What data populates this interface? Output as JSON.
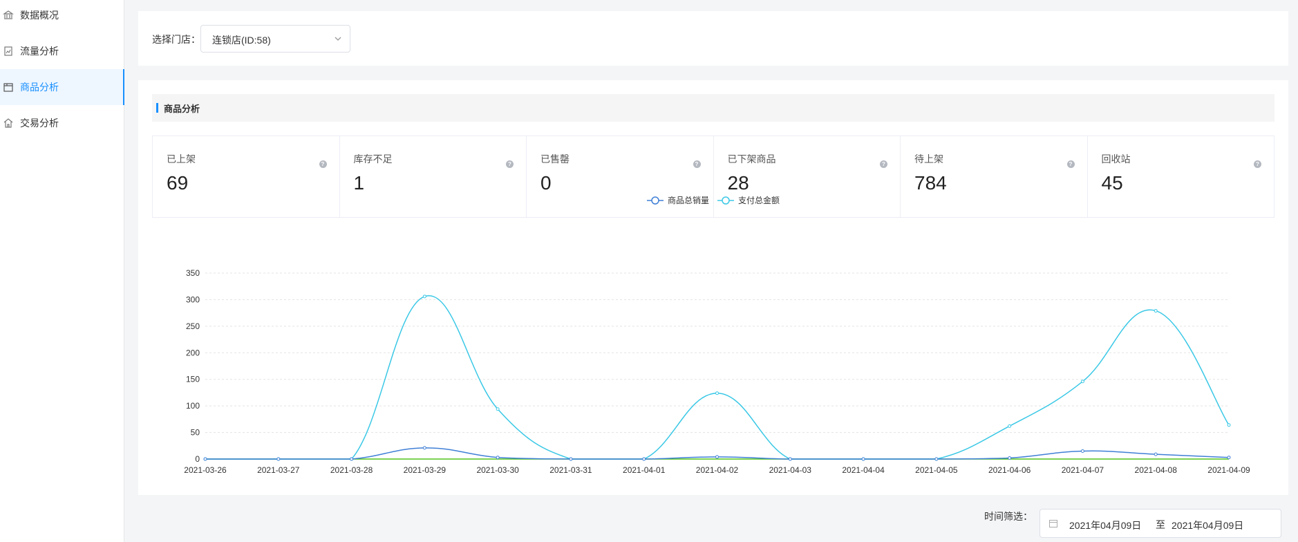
{
  "sidebar": {
    "items": [
      {
        "label": "数据概况",
        "icon": "bank-icon"
      },
      {
        "label": "流量分析",
        "icon": "chart-doc-icon"
      },
      {
        "label": "商品分析",
        "icon": "box-icon"
      },
      {
        "label": "交易分析",
        "icon": "building-icon"
      }
    ],
    "active_index": 2
  },
  "store": {
    "label": "选择门店：",
    "selected": "连锁店(ID:58)"
  },
  "section": {
    "title": "商品分析"
  },
  "stats": [
    {
      "label": "已上架",
      "value": "69"
    },
    {
      "label": "库存不足",
      "value": "1"
    },
    {
      "label": "已售罄",
      "value": "0"
    },
    {
      "label": "已下架商品",
      "value": "28"
    },
    {
      "label": "待上架",
      "value": "784"
    },
    {
      "label": "回收站",
      "value": "45"
    }
  ],
  "chart_data": {
    "type": "line",
    "categories": [
      "2021-03-26",
      "2021-03-27",
      "2021-03-28",
      "2021-03-29",
      "2021-03-30",
      "2021-03-31",
      "2021-04-01",
      "2021-04-02",
      "2021-04-03",
      "2021-04-04",
      "2021-04-05",
      "2021-04-06",
      "2021-04-07",
      "2021-04-08",
      "2021-04-09"
    ],
    "series": [
      {
        "name": "商品总销量",
        "color": "#3f7fd6",
        "values": [
          0,
          0,
          0,
          21,
          3,
          0,
          0,
          4,
          0,
          0,
          0,
          2,
          15,
          9,
          3
        ]
      },
      {
        "name": "支付总金额",
        "color": "#3ac8e6",
        "values": [
          0,
          0,
          0,
          306,
          94,
          0,
          0,
          124,
          0,
          0,
          0,
          62,
          146,
          279,
          64
        ]
      }
    ],
    "extra_line_color": "#52c41a",
    "ylim": [
      0,
      350
    ],
    "yticks": [
      0,
      50,
      100,
      150,
      200,
      250,
      300,
      350
    ],
    "grid": true,
    "legend": "top-center"
  },
  "filter": {
    "label": "时间筛选：",
    "start": "2021年04月09日",
    "separator": "至",
    "end": "2021年04月09日"
  }
}
